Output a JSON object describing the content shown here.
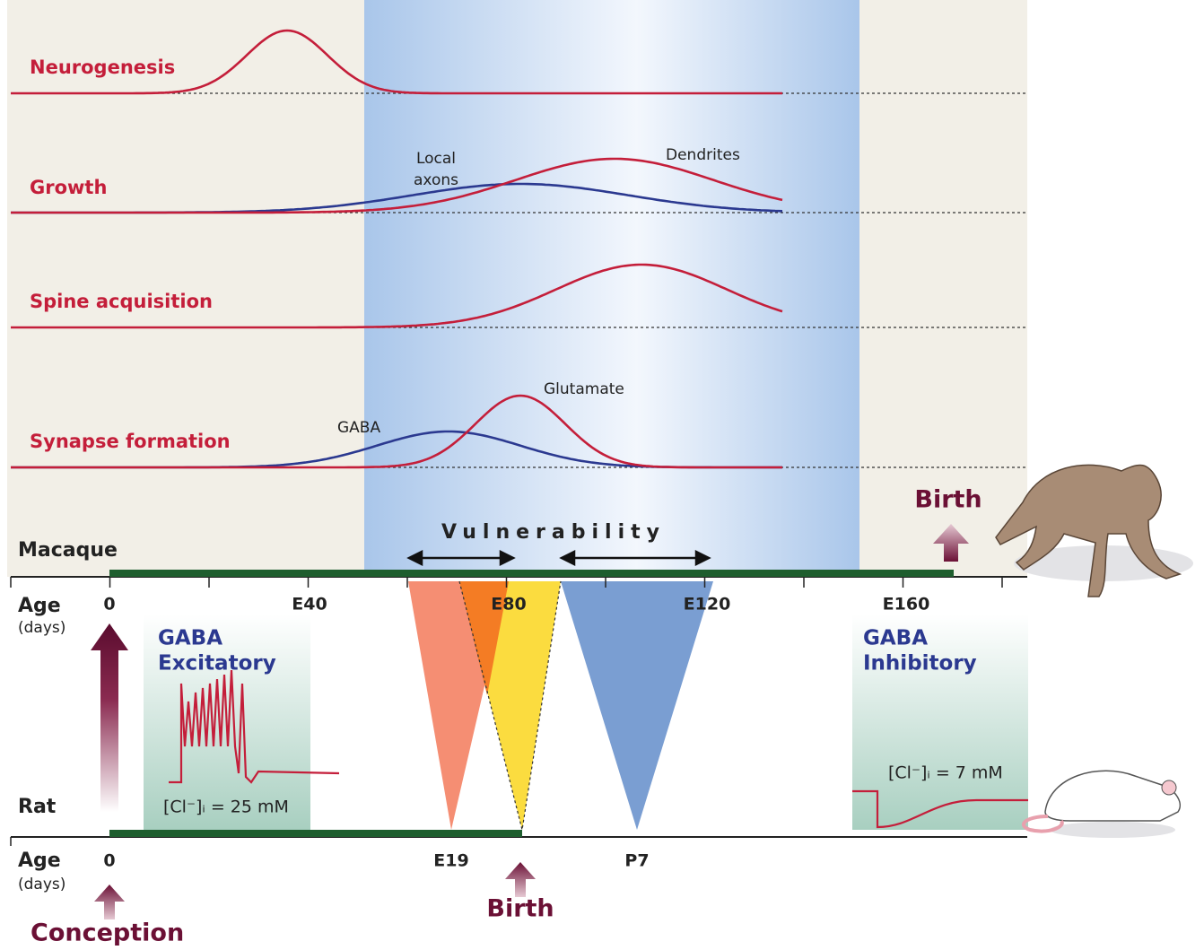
{
  "rows": [
    "Neurogenesis",
    "Growth",
    "Spine acquisition",
    "Synapse formation"
  ],
  "curve_labels": {
    "local_axons": [
      "Local",
      "axons"
    ],
    "dendrites": "Dendrites",
    "gaba": "GABA",
    "glutamate": "Glutamate"
  },
  "vulnerability": "Vulnerability",
  "macaque": {
    "species": "Macaque",
    "birth": "Birth",
    "age": "Age",
    "unit": "(days)",
    "ticks": [
      "0",
      "E40",
      "E80",
      "E120",
      "E160"
    ]
  },
  "rat": {
    "species": "Rat",
    "birth": "Birth",
    "conception": "Conception",
    "age": "Age",
    "unit": "(days)",
    "ticks": [
      "0",
      "E19",
      "P7"
    ]
  },
  "gaba_excitatory": {
    "title": [
      "GABA",
      "Excitatory"
    ],
    "chloride": "[Cl⁻]ᵢ = 25 mM"
  },
  "gaba_inhibitory": {
    "title": [
      "GABA",
      "Inhibitory"
    ],
    "chloride": "[Cl⁻]ᵢ = 7 mM"
  }
}
